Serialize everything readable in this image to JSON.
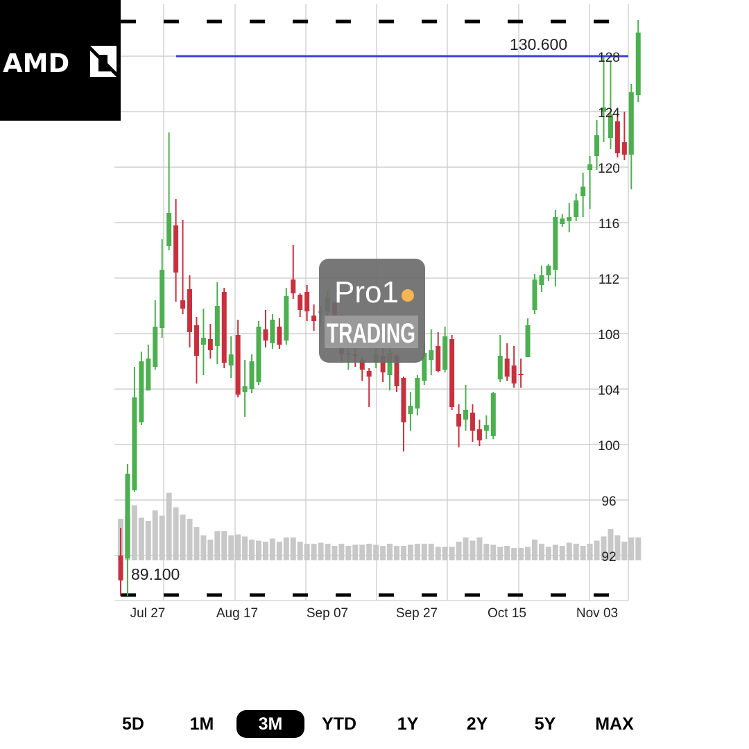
{
  "logo": {
    "text": "AMD"
  },
  "watermark": {
    "line1": "Pro1",
    "line2": "TRADING"
  },
  "colors": {
    "up": "#4caf50",
    "down": "#c8303e",
    "volume": "#c8c8c8",
    "level_line": "#3a3fd8",
    "grid": "#c8c8c8",
    "active_button_bg": "#000000"
  },
  "range_selector": {
    "active": "3M",
    "buttons": [
      "5D",
      "1M",
      "3M",
      "YTD",
      "1Y",
      "2Y",
      "5Y",
      "MAX"
    ]
  },
  "chart_data": {
    "type": "candlestick",
    "title": "",
    "y_ticks": [
      "92",
      "96",
      "100",
      "104",
      "108",
      "112",
      "116",
      "120",
      "124",
      "128"
    ],
    "x_ticks": [
      "Jul 27",
      "Aug 17",
      "Sep 07",
      "Sep 27",
      "Oct 15",
      "Nov 03"
    ],
    "ylim": [
      89,
      132
    ],
    "grid": true,
    "annotations": {
      "period_high": "130.600",
      "period_low": "89.100",
      "level_line_value": 128
    },
    "series": [
      {
        "date": "Jul 21",
        "open": 92.0,
        "high": 94.0,
        "low": 89.1,
        "close": 90.2,
        "volume": 0.4
      },
      {
        "date": "Jul 22",
        "open": 91.8,
        "high": 98.6,
        "low": 89.1,
        "close": 97.9,
        "volume": 0.42
      },
      {
        "date": "Jul 23",
        "open": 96.7,
        "high": 105.6,
        "low": 96.6,
        "close": 103.4,
        "volume": 0.53
      },
      {
        "date": "Jul 24",
        "open": 101.6,
        "high": 106.7,
        "low": 101.4,
        "close": 106.0,
        "volume": 0.41
      },
      {
        "date": "Jul 27",
        "open": 103.9,
        "high": 107.2,
        "low": 103.9,
        "close": 106.2,
        "volume": 0.38
      },
      {
        "date": "Jul 28",
        "open": 105.6,
        "high": 110.4,
        "low": 105.4,
        "close": 108.5,
        "volume": 0.48
      },
      {
        "date": "Jul 29",
        "open": 108.4,
        "high": 114.8,
        "low": 107.7,
        "close": 112.6,
        "volume": 0.43
      },
      {
        "date": "Jul 30",
        "open": 114.3,
        "high": 122.5,
        "low": 114.0,
        "close": 116.7,
        "volume": 0.65
      },
      {
        "date": "Jul 31",
        "open": 115.8,
        "high": 117.7,
        "low": 110.3,
        "close": 112.4,
        "volume": 0.51
      },
      {
        "date": "Aug 03",
        "open": 110.4,
        "high": 116.2,
        "low": 109.4,
        "close": 109.8,
        "volume": 0.44
      },
      {
        "date": "Aug 04",
        "open": 111.2,
        "high": 112.2,
        "low": 107.0,
        "close": 108.1,
        "volume": 0.4
      },
      {
        "date": "Aug 05",
        "open": 108.6,
        "high": 109.2,
        "low": 104.4,
        "close": 106.4,
        "volume": 0.32
      },
      {
        "date": "Aug 06",
        "open": 107.2,
        "high": 109.8,
        "low": 105.0,
        "close": 107.7,
        "volume": 0.24
      },
      {
        "date": "Aug 07",
        "open": 107.6,
        "high": 108.7,
        "low": 106.2,
        "close": 106.8,
        "volume": 0.2
      },
      {
        "date": "Aug 10",
        "open": 107.1,
        "high": 111.7,
        "low": 105.8,
        "close": 110.0,
        "volume": 0.28
      },
      {
        "date": "Aug 11",
        "open": 111.0,
        "high": 111.3,
        "low": 105.5,
        "close": 105.9,
        "volume": 0.28
      },
      {
        "date": "Aug 12",
        "open": 105.7,
        "high": 107.8,
        "low": 104.8,
        "close": 106.5,
        "volume": 0.24
      },
      {
        "date": "Aug 13",
        "open": 107.9,
        "high": 109.0,
        "low": 103.4,
        "close": 103.6,
        "volume": 0.25
      },
      {
        "date": "Aug 14",
        "open": 103.8,
        "high": 106.1,
        "low": 102.0,
        "close": 104.2,
        "volume": 0.23
      },
      {
        "date": "Aug 17",
        "open": 104.0,
        "high": 106.5,
        "low": 103.7,
        "close": 106.0,
        "volume": 0.2
      },
      {
        "date": "Aug 18",
        "open": 104.5,
        "high": 108.9,
        "low": 104.3,
        "close": 108.5,
        "volume": 0.19
      },
      {
        "date": "Aug 19",
        "open": 108.3,
        "high": 109.7,
        "low": 107.0,
        "close": 107.5,
        "volume": 0.18
      },
      {
        "date": "Aug 20",
        "open": 107.3,
        "high": 109.4,
        "low": 106.9,
        "close": 109.0,
        "volume": 0.21
      },
      {
        "date": "Aug 21",
        "open": 108.5,
        "high": 109.1,
        "low": 106.9,
        "close": 107.2,
        "volume": 0.18
      },
      {
        "date": "Aug 24",
        "open": 107.5,
        "high": 111.3,
        "low": 107.2,
        "close": 110.7,
        "volume": 0.22
      },
      {
        "date": "Aug 25",
        "open": 111.9,
        "high": 114.4,
        "low": 110.5,
        "close": 110.9,
        "volume": 0.22
      },
      {
        "date": "Aug 26",
        "open": 110.8,
        "high": 110.9,
        "low": 109.2,
        "close": 109.7,
        "volume": 0.18
      },
      {
        "date": "Aug 27",
        "open": 111.0,
        "high": 111.5,
        "low": 108.9,
        "close": 109.6,
        "volume": 0.16
      },
      {
        "date": "Aug 28",
        "open": 109.3,
        "high": 110.1,
        "low": 108.2,
        "close": 108.9,
        "volume": 0.16
      },
      {
        "date": "Aug 31",
        "open": 109.5,
        "high": 110.0,
        "low": 108.5,
        "close": 109.6,
        "volume": 0.17
      },
      {
        "date": "Sep 01",
        "open": 109.6,
        "high": 111.1,
        "low": 108.8,
        "close": 110.6,
        "volume": 0.16
      },
      {
        "date": "Sep 02",
        "open": 110.3,
        "high": 110.3,
        "low": 108.8,
        "close": 109.3,
        "volume": 0.14
      },
      {
        "date": "Sep 03",
        "open": 109.1,
        "high": 109.4,
        "low": 106.0,
        "close": 106.5,
        "volume": 0.16
      },
      {
        "date": "Sep 04",
        "open": 106.6,
        "high": 107.3,
        "low": 105.4,
        "close": 106.6,
        "volume": 0.14
      },
      {
        "date": "Sep 08",
        "open": 106.5,
        "high": 107.2,
        "low": 105.6,
        "close": 106.4,
        "volume": 0.15
      },
      {
        "date": "Sep 09",
        "open": 106.1,
        "high": 106.3,
        "low": 104.6,
        "close": 105.4,
        "volume": 0.15
      },
      {
        "date": "Sep 10",
        "open": 105.3,
        "high": 105.5,
        "low": 102.7,
        "close": 104.9,
        "volume": 0.16
      },
      {
        "date": "Sep 11",
        "open": 105.9,
        "high": 107.3,
        "low": 105.5,
        "close": 106.5,
        "volume": 0.15
      },
      {
        "date": "Sep 14",
        "open": 106.4,
        "high": 107.4,
        "low": 104.5,
        "close": 105.2,
        "volume": 0.14
      },
      {
        "date": "Sep 15",
        "open": 105.0,
        "high": 106.9,
        "low": 103.9,
        "close": 106.6,
        "volume": 0.16
      },
      {
        "date": "Sep 16",
        "open": 106.4,
        "high": 106.5,
        "low": 103.8,
        "close": 104.2,
        "volume": 0.14
      },
      {
        "date": "Sep 17",
        "open": 104.8,
        "high": 104.9,
        "low": 99.5,
        "close": 101.6,
        "volume": 0.14
      },
      {
        "date": "Sep 18",
        "open": 102.2,
        "high": 103.8,
        "low": 101.0,
        "close": 102.8,
        "volume": 0.15
      },
      {
        "date": "Sep 21",
        "open": 102.6,
        "high": 105.0,
        "low": 102.1,
        "close": 104.8,
        "volume": 0.16
      },
      {
        "date": "Sep 22",
        "open": 104.6,
        "high": 107.4,
        "low": 104.3,
        "close": 106.6,
        "volume": 0.16
      },
      {
        "date": "Sep 23",
        "open": 106.1,
        "high": 108.3,
        "low": 105.0,
        "close": 106.8,
        "volume": 0.16
      },
      {
        "date": "Sep 24",
        "open": 107.1,
        "high": 108.1,
        "low": 105.2,
        "close": 105.3,
        "volume": 0.13
      },
      {
        "date": "Sep 25",
        "open": 105.4,
        "high": 108.5,
        "low": 105.2,
        "close": 107.8,
        "volume": 0.13
      },
      {
        "date": "Sep 28",
        "open": 107.6,
        "high": 107.9,
        "low": 102.5,
        "close": 102.7,
        "volume": 0.13
      },
      {
        "date": "Sep 29",
        "open": 102.2,
        "high": 102.9,
        "low": 99.8,
        "close": 101.3,
        "volume": 0.18
      },
      {
        "date": "Sep 30",
        "open": 101.8,
        "high": 104.3,
        "low": 101.0,
        "close": 102.5,
        "volume": 0.22
      },
      {
        "date": "Oct 01",
        "open": 102.3,
        "high": 102.9,
        "low": 100.2,
        "close": 101.0,
        "volume": 0.19
      },
      {
        "date": "Oct 02",
        "open": 101.1,
        "high": 101.8,
        "low": 99.9,
        "close": 100.3,
        "volume": 0.22
      },
      {
        "date": "Oct 05",
        "open": 101.0,
        "high": 102.1,
        "low": 100.4,
        "close": 101.4,
        "volume": 0.16
      },
      {
        "date": "Oct 06",
        "open": 100.6,
        "high": 103.8,
        "low": 100.4,
        "close": 103.7,
        "volume": 0.15
      },
      {
        "date": "Oct 07",
        "open": 104.7,
        "high": 107.9,
        "low": 104.5,
        "close": 106.4,
        "volume": 0.13
      },
      {
        "date": "Oct 08",
        "open": 106.2,
        "high": 107.3,
        "low": 104.6,
        "close": 104.9,
        "volume": 0.14
      },
      {
        "date": "Oct 09",
        "open": 105.7,
        "high": 107.1,
        "low": 104.1,
        "close": 104.4,
        "volume": 0.12
      },
      {
        "date": "Oct 12",
        "open": 105.1,
        "high": 106.2,
        "low": 104.1,
        "close": 105.0,
        "volume": 0.12
      },
      {
        "date": "Oct 13",
        "open": 106.3,
        "high": 109.1,
        "low": 106.3,
        "close": 108.6,
        "volume": 0.13
      },
      {
        "date": "Oct 14",
        "open": 109.7,
        "high": 112.3,
        "low": 109.4,
        "close": 111.9,
        "volume": 0.2
      },
      {
        "date": "Oct 15",
        "open": 111.5,
        "high": 112.9,
        "low": 111.0,
        "close": 112.2,
        "volume": 0.16
      },
      {
        "date": "Oct 16",
        "open": 112.2,
        "high": 113.0,
        "low": 111.8,
        "close": 112.9,
        "volume": 0.13
      },
      {
        "date": "Oct 19",
        "open": 112.6,
        "high": 116.9,
        "low": 111.4,
        "close": 116.4,
        "volume": 0.15
      },
      {
        "date": "Oct 20",
        "open": 115.9,
        "high": 116.6,
        "low": 115.7,
        "close": 116.3,
        "volume": 0.14
      },
      {
        "date": "Oct 21",
        "open": 116.1,
        "high": 117.4,
        "low": 115.3,
        "close": 116.4,
        "volume": 0.17
      },
      {
        "date": "Oct 22",
        "open": 116.4,
        "high": 118.1,
        "low": 116.1,
        "close": 117.6,
        "volume": 0.16
      },
      {
        "date": "Oct 23",
        "open": 117.9,
        "high": 119.6,
        "low": 116.4,
        "close": 118.6,
        "volume": 0.14
      },
      {
        "date": "Oct 26",
        "open": 119.8,
        "high": 120.8,
        "low": 117.0,
        "close": 120.2,
        "volume": 0.16
      },
      {
        "date": "Oct 27",
        "open": 120.8,
        "high": 123.4,
        "low": 119.8,
        "close": 122.3,
        "volume": 0.19
      },
      {
        "date": "Oct 28",
        "open": 124.0,
        "high": 128.0,
        "low": 121.8,
        "close": 124.3,
        "volume": 0.23
      },
      {
        "date": "Oct 29",
        "open": 122.1,
        "high": 127.6,
        "low": 121.3,
        "close": 123.8,
        "volume": 0.3
      },
      {
        "date": "Oct 30",
        "open": 123.3,
        "high": 123.9,
        "low": 120.7,
        "close": 121.0,
        "volume": 0.24
      },
      {
        "date": "Nov 02",
        "open": 121.8,
        "high": 124.0,
        "low": 120.5,
        "close": 120.9,
        "volume": 0.18
      },
      {
        "date": "Nov 03",
        "open": 120.9,
        "high": 126.0,
        "low": 118.4,
        "close": 125.4,
        "volume": 0.22
      },
      {
        "date": "Nov 04",
        "open": 125.2,
        "high": 130.6,
        "low": 124.7,
        "close": 129.7,
        "volume": 0.22
      }
    ]
  }
}
